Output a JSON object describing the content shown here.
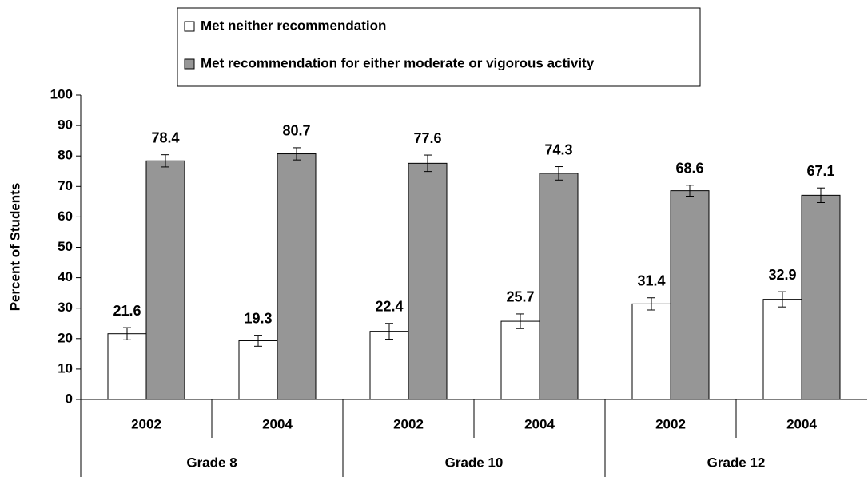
{
  "chart_data": {
    "type": "bar",
    "y_label": "Percent of Students",
    "categories": [
      "2002",
      "2004",
      "2002",
      "2004",
      "2002",
      "2004"
    ],
    "groups": [
      "Grade 8",
      "Grade 10",
      "Grade 12"
    ],
    "series": [
      {
        "name": "Met neither recommendation",
        "color": "#ffffff",
        "values": [
          21.6,
          19.3,
          22.4,
          25.7,
          31.4,
          32.9
        ],
        "errors": [
          2.0,
          1.8,
          2.6,
          2.4,
          2.0,
          2.5
        ]
      },
      {
        "name": "Met recommendation for either moderate or vigorous activity",
        "color": "#969696",
        "values": [
          78.4,
          80.7,
          77.6,
          74.3,
          68.6,
          67.1
        ],
        "errors": [
          2.0,
          2.0,
          2.7,
          2.2,
          1.8,
          2.4
        ]
      }
    ],
    "ylim": [
      0,
      100
    ],
    "yticks": [
      0,
      10,
      20,
      30,
      40,
      50,
      60,
      70,
      80,
      90,
      100
    ],
    "grid": false,
    "legend": "top"
  }
}
